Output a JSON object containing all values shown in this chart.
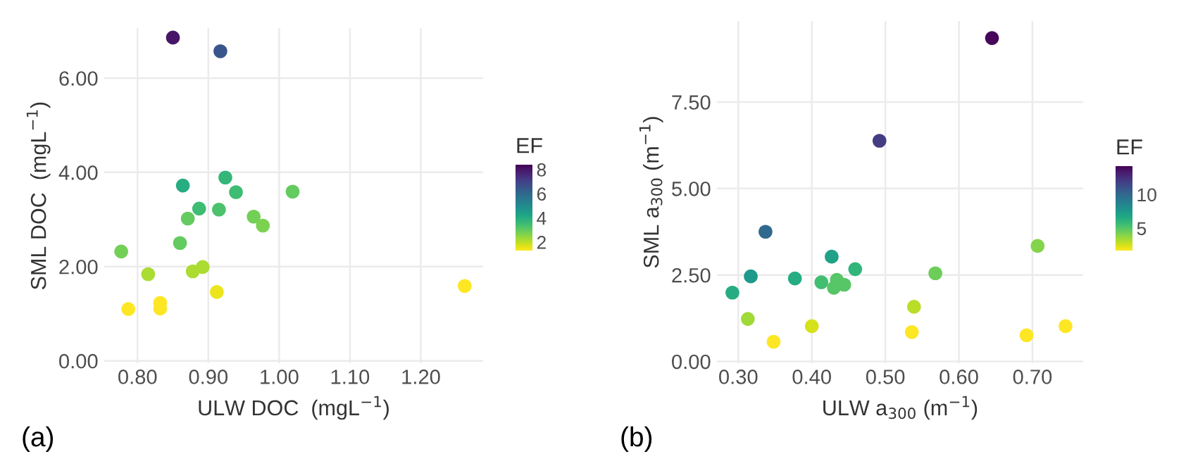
{
  "chart_data": [
    {
      "type": "scatter",
      "xlabel": "ULW DOC  (mgL$^{−1}$)",
      "ylabel": "SML DOC  (mgL$^{−1}$)",
      "clabel": "EF",
      "annotations": [
        "(a)"
      ],
      "x": [
        0.85,
        0.917,
        0.924,
        0.864,
        0.939,
        1.019,
        0.887,
        0.915,
        0.871,
        0.964,
        0.977,
        0.86,
        0.777,
        0.815,
        0.878,
        0.892,
        0.912,
        1.262,
        0.832,
        0.832,
        0.787
      ],
      "values": [
        6.86,
        6.57,
        3.89,
        3.72,
        3.58,
        3.59,
        3.23,
        3.21,
        3.02,
        3.06,
        2.87,
        2.5,
        2.32,
        1.84,
        1.9,
        1.99,
        1.46,
        1.59,
        1.23,
        1.11,
        1.1
      ],
      "cvalues": [
        8,
        6.5,
        3.7,
        4,
        3.5,
        3,
        3.5,
        3.3,
        3,
        2.8,
        2.7,
        3,
        2.8,
        2.2,
        2.2,
        2.2,
        1.5,
        1.2,
        1.2,
        1.2,
        1.1
      ],
      "clim": [
        1.3,
        8.4
      ],
      "cticks": [
        2,
        4,
        6,
        8
      ],
      "xlim": [
        0.753,
        1.288
      ],
      "ylim": [
        -0.05,
        7.06
      ],
      "xticks": [
        {
          "value": 0.8,
          "label": "0.80"
        },
        {
          "value": 0.9,
          "label": "0.90"
        },
        {
          "value": 1.0,
          "label": "1.00"
        },
        {
          "value": 1.1,
          "label": "1.10"
        },
        {
          "value": 1.2,
          "label": "1.20"
        }
      ],
      "yticks": [
        {
          "value": 0,
          "label": "0.00"
        },
        {
          "value": 2,
          "label": "2.00"
        },
        {
          "value": 4,
          "label": "4.00"
        },
        {
          "value": 6,
          "label": "6.00"
        }
      ],
      "grid": true
    },
    {
      "type": "scatter",
      "xlabel": "ULW a$_{300}$ (m$^{−1}$)",
      "ylabel": "SML a$_{300}$ (m$^{−1}$)",
      "clabel": "EF",
      "annotations": [
        "(b)"
      ],
      "x": [
        0.645,
        0.492,
        0.337,
        0.427,
        0.317,
        0.377,
        0.459,
        0.413,
        0.434,
        0.43,
        0.444,
        0.292,
        0.568,
        0.707,
        0.313,
        0.539,
        0.4,
        0.348,
        0.536,
        0.692,
        0.745
      ],
      "values": [
        9.35,
        6.38,
        3.75,
        3.03,
        2.46,
        2.4,
        2.67,
        2.29,
        2.36,
        2.13,
        2.22,
        1.99,
        2.55,
        3.34,
        1.23,
        1.58,
        1.02,
        0.57,
        0.85,
        0.76,
        1.02
      ],
      "cvalues": [
        14,
        12,
        10,
        7,
        7.5,
        6.5,
        6,
        5.5,
        5,
        5,
        5,
        6.5,
        4.5,
        4,
        3.5,
        3,
        2.5,
        1.5,
        1.5,
        1.2,
        1.3
      ],
      "clim": [
        1.7,
        14.2
      ],
      "cticks": [
        5,
        10
      ],
      "xlim": [
        0.271,
        0.769
      ],
      "ylim": [
        -0.05,
        9.84
      ],
      "xticks": [
        {
          "value": 0.3,
          "label": "0.30"
        },
        {
          "value": 0.4,
          "label": "0.40"
        },
        {
          "value": 0.5,
          "label": "0.50"
        },
        {
          "value": 0.6,
          "label": "0.60"
        },
        {
          "value": 0.7,
          "label": "0.70"
        }
      ],
      "yticks": [
        {
          "value": 0,
          "label": "0.00"
        },
        {
          "value": 2.5,
          "label": "2.50"
        },
        {
          "value": 5,
          "label": "5.00"
        },
        {
          "value": 7.5,
          "label": "7.50"
        }
      ],
      "grid": true
    }
  ]
}
